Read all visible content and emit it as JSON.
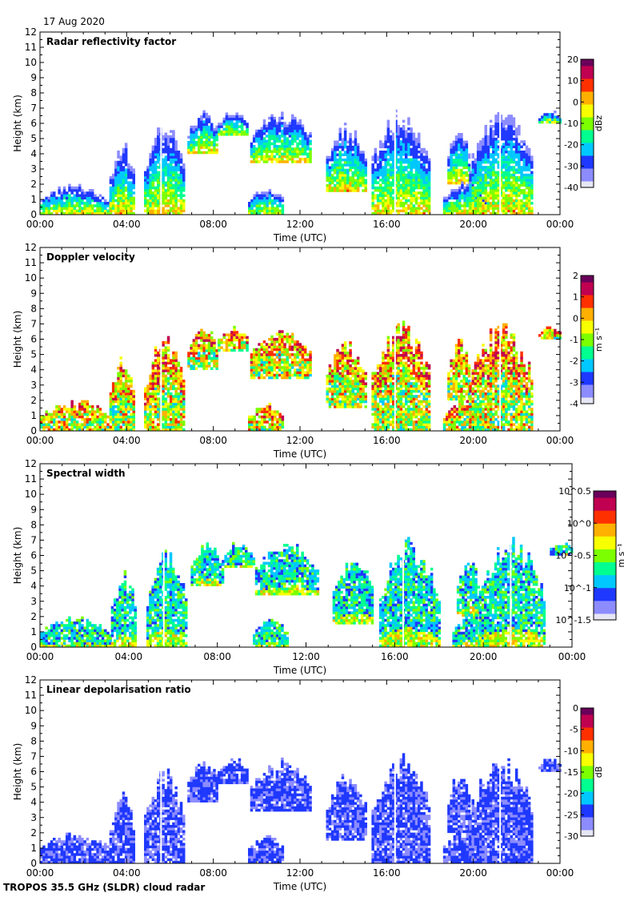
{
  "header": {
    "date": "17 Aug 2020"
  },
  "footer": {
    "instrument": "TROPOS 35.5 GHz (SLDR) cloud radar"
  },
  "chart_data": [
    {
      "type": "heatmap",
      "title": "Radar reflectivity factor",
      "xlabel": "Time (UTC)",
      "ylabel": "Height (km)",
      "x_ticks": [
        "00:00",
        "04:00",
        "08:00",
        "12:00",
        "16:00",
        "20:00",
        "00:00"
      ],
      "xlim_hours": [
        0,
        24
      ],
      "y_ticks": [
        0,
        1,
        2,
        3,
        4,
        5,
        6,
        7,
        8,
        9,
        10,
        11,
        12
      ],
      "ylim_km": [
        0,
        12
      ],
      "colorbar": {
        "label": "dBz",
        "ticks": [
          "20",
          "10",
          "0",
          "-10",
          "-20",
          "-30",
          "-40"
        ],
        "range": [
          -40,
          20
        ]
      }
    },
    {
      "type": "heatmap",
      "title": "Doppler velocity",
      "xlabel": "Time (UTC)",
      "ylabel": "Height (km)",
      "x_ticks": [
        "00:00",
        "04:00",
        "08:00",
        "12:00",
        "16:00",
        "20:00",
        "00:00"
      ],
      "xlim_hours": [
        0,
        24
      ],
      "y_ticks": [
        0,
        1,
        2,
        3,
        4,
        5,
        6,
        7,
        8,
        9,
        10,
        11,
        12
      ],
      "ylim_km": [
        0,
        12
      ],
      "colorbar": {
        "label": "m s⁻¹",
        "ticks": [
          "2",
          "1",
          "0",
          "-1",
          "-2",
          "-3",
          "-4"
        ],
        "range": [
          -4,
          2
        ]
      }
    },
    {
      "type": "heatmap",
      "title": "Spectral width",
      "xlabel": "Time (UTC)",
      "ylabel": "Height (km)",
      "x_ticks": [
        "00:00",
        "04:00",
        "08:00",
        "12:00",
        "16:00",
        "20:00",
        "00:00"
      ],
      "xlim_hours": [
        0,
        24
      ],
      "y_ticks": [
        0,
        1,
        2,
        3,
        4,
        5,
        6,
        7,
        8,
        9,
        10,
        11,
        12
      ],
      "ylim_km": [
        0,
        12
      ],
      "colorbar": {
        "label": "m s⁻¹",
        "ticks": [
          "10^0.5",
          "10^0",
          "10^-0.5",
          "10^-1",
          "10^-1.5"
        ],
        "range": [
          -1.5,
          0.5
        ]
      }
    },
    {
      "type": "heatmap",
      "title": "Linear depolarisation ratio",
      "xlabel": "Time (UTC)",
      "ylabel": "Height (km)",
      "x_ticks": [
        "00:00",
        "04:00",
        "08:00",
        "12:00",
        "16:00",
        "20:00",
        "00:00"
      ],
      "xlim_hours": [
        0,
        24
      ],
      "y_ticks": [
        0,
        1,
        2,
        3,
        4,
        5,
        6,
        7,
        8,
        9,
        10,
        11,
        12
      ],
      "ylim_km": [
        0,
        12
      ],
      "colorbar": {
        "label": "dB",
        "ticks": [
          "0",
          "-5",
          "-10",
          "-15",
          "-20",
          "-25",
          "-30"
        ],
        "range": [
          -30,
          0
        ]
      }
    }
  ],
  "cloud_regions": [
    {
      "t0": 0.0,
      "t1": 3.2,
      "h0": 0.0,
      "h1": 2.2
    },
    {
      "t0": 3.2,
      "t1": 4.3,
      "h0": 0.0,
      "h1": 5.2
    },
    {
      "t0": 4.8,
      "t1": 6.6,
      "h0": 0.0,
      "h1": 6.5
    },
    {
      "t0": 6.8,
      "t1": 8.2,
      "h0": 4.0,
      "h1": 7.0
    },
    {
      "t0": 8.2,
      "t1": 9.6,
      "h0": 5.2,
      "h1": 7.0
    },
    {
      "t0": 9.7,
      "t1": 12.5,
      "h0": 3.4,
      "h1": 7.0
    },
    {
      "t0": 9.6,
      "t1": 11.2,
      "h0": 0.0,
      "h1": 2.0
    },
    {
      "t0": 13.2,
      "t1": 15.0,
      "h0": 1.5,
      "h1": 6.2
    },
    {
      "t0": 15.3,
      "t1": 18.0,
      "h0": 0.0,
      "h1": 7.4
    },
    {
      "t0": 18.8,
      "t1": 19.8,
      "h0": 2.0,
      "h1": 6.2
    },
    {
      "t0": 18.6,
      "t1": 20.6,
      "h0": 0.0,
      "h1": 2.4
    },
    {
      "t0": 19.8,
      "t1": 22.7,
      "h0": 0.0,
      "h1": 7.4
    },
    {
      "t0": 23.0,
      "t1": 24.0,
      "h0": 6.0,
      "h1": 7.0
    }
  ],
  "colors": {
    "reflectivity_scale": [
      "#e6e6f5",
      "#8c8cff",
      "#1f38ff",
      "#00c8ff",
      "#00ff90",
      "#7cff00",
      "#f7ff00",
      "#ffb000",
      "#ff3000",
      "#c00050",
      "#6a005a"
    ],
    "velocity_scale": [
      "#e6e6f5",
      "#8c8cff",
      "#1f38ff",
      "#00c8ff",
      "#00ff90",
      "#7cff00",
      "#f7ff00",
      "#ffb000",
      "#ff3000",
      "#c00050",
      "#6a005a"
    ],
    "width_scale": [
      "#e6e6f5",
      "#8c8cff",
      "#1f38ff",
      "#00c8ff",
      "#00ff90",
      "#7cff00",
      "#f7ff00",
      "#ffb000",
      "#ff3000",
      "#c00050",
      "#6a005a"
    ],
    "ldr_scale": [
      "#e6e6f5",
      "#8c8cff",
      "#1f38ff",
      "#00c8ff",
      "#00ff90",
      "#7cff00",
      "#f7ff00",
      "#ffb000",
      "#ff3000",
      "#c00050",
      "#6a005a"
    ]
  }
}
